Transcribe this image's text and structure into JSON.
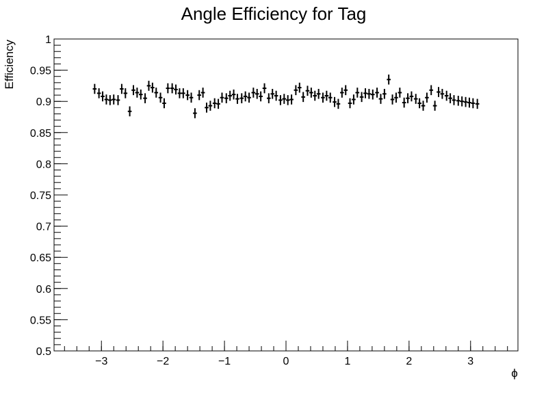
{
  "chart_data": {
    "type": "scatter",
    "title": "Angle Efficiency for Tag",
    "xlabel": "ϕ",
    "ylabel": "Efficiency",
    "xlim": [
      -3.77,
      3.77
    ],
    "ylim": [
      0.5,
      1.0
    ],
    "x_ticks": [
      -3,
      -2,
      -1,
      0,
      1,
      2,
      3
    ],
    "x_tick_labels": [
      "−3",
      "−2",
      "−1",
      "0",
      "1",
      "2",
      "3"
    ],
    "y_ticks": [
      0.5,
      0.55,
      0.6,
      0.65,
      0.7,
      0.75,
      0.8,
      0.85,
      0.9,
      0.95,
      1.0
    ],
    "y_tick_labels": [
      "0.5",
      "0.55",
      "0.6",
      "0.65",
      "0.7",
      "0.75",
      "0.8",
      "0.85",
      "0.9",
      "0.95",
      "1"
    ],
    "grid": false,
    "series": [
      {
        "x_error": 0.0314,
        "y_error": 0.008,
        "x": [
          -3.11,
          -3.04,
          -2.98,
          -2.92,
          -2.86,
          -2.8,
          -2.73,
          -2.67,
          -2.61,
          -2.54,
          -2.48,
          -2.42,
          -2.36,
          -2.29,
          -2.23,
          -2.17,
          -2.11,
          -2.04,
          -1.98,
          -1.92,
          -1.85,
          -1.79,
          -1.73,
          -1.67,
          -1.6,
          -1.54,
          -1.48,
          -1.41,
          -1.35,
          -1.29,
          -1.23,
          -1.16,
          -1.1,
          -1.04,
          -0.97,
          -0.91,
          -0.85,
          -0.79,
          -0.72,
          -0.66,
          -0.6,
          -0.53,
          -0.47,
          -0.41,
          -0.35,
          -0.28,
          -0.22,
          -0.16,
          -0.09,
          -0.03,
          0.03,
          0.09,
          0.16,
          0.22,
          0.28,
          0.35,
          0.41,
          0.47,
          0.53,
          0.6,
          0.66,
          0.72,
          0.79,
          0.85,
          0.91,
          0.97,
          1.04,
          1.1,
          1.16,
          1.23,
          1.29,
          1.35,
          1.41,
          1.48,
          1.54,
          1.6,
          1.67,
          1.73,
          1.79,
          1.85,
          1.92,
          1.98,
          2.04,
          2.11,
          2.17,
          2.23,
          2.29,
          2.36,
          2.42,
          2.48,
          2.54,
          2.61,
          2.67,
          2.73,
          2.8,
          2.86,
          2.92,
          2.98,
          3.04,
          3.11
        ],
        "y": [
          0.92,
          0.913,
          0.908,
          0.903,
          0.902,
          0.903,
          0.902,
          0.92,
          0.913,
          0.884,
          0.918,
          0.914,
          0.911,
          0.905,
          0.925,
          0.922,
          0.914,
          0.906,
          0.897,
          0.921,
          0.921,
          0.919,
          0.913,
          0.913,
          0.91,
          0.906,
          0.881,
          0.91,
          0.914,
          0.89,
          0.893,
          0.897,
          0.896,
          0.906,
          0.905,
          0.909,
          0.911,
          0.904,
          0.905,
          0.908,
          0.906,
          0.914,
          0.912,
          0.908,
          0.921,
          0.905,
          0.912,
          0.909,
          0.902,
          0.904,
          0.902,
          0.903,
          0.918,
          0.922,
          0.907,
          0.917,
          0.914,
          0.909,
          0.912,
          0.906,
          0.909,
          0.906,
          0.899,
          0.896,
          0.914,
          0.918,
          0.897,
          0.903,
          0.914,
          0.907,
          0.913,
          0.912,
          0.911,
          0.914,
          0.904,
          0.912,
          0.935,
          0.903,
          0.906,
          0.914,
          0.898,
          0.905,
          0.908,
          0.904,
          0.897,
          0.893,
          0.906,
          0.918,
          0.893,
          0.915,
          0.912,
          0.909,
          0.905,
          0.902,
          0.901,
          0.9,
          0.899,
          0.898,
          0.897,
          0.896
        ]
      }
    ]
  }
}
